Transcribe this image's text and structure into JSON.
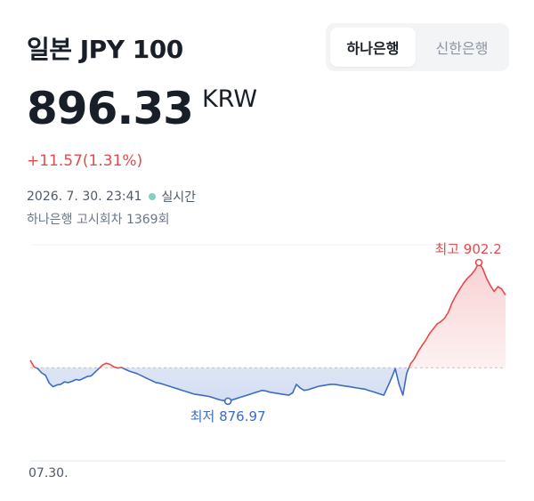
{
  "header": {
    "title": "일본 JPY 100",
    "banks": [
      {
        "label": "하나은행",
        "active": true
      },
      {
        "label": "신한은행",
        "active": false
      }
    ]
  },
  "rate": {
    "price": "896.33",
    "unit": "KRW",
    "change": "+11.57(1.31%)",
    "timestamp": "2026. 7. 30. 23:41",
    "live_label": "실시간",
    "notice": "하나은행 고시회차 1369회"
  },
  "colors": {
    "up": "#e5494d",
    "down": "#3c6bc4",
    "live": "#7fd3c0"
  },
  "chart_data": {
    "type": "line",
    "x_label_start": "07.30.",
    "baseline": 884.76,
    "high_label": "최고 902.2",
    "low_label": "최저 876.97",
    "high": 902.2,
    "low": 876.97,
    "values": [
      886.0,
      884.9,
      884.6,
      883.9,
      883.5,
      882.2,
      881.6,
      881.9,
      882.0,
      882.4,
      882.3,
      882.5,
      882.8,
      882.7,
      883.0,
      883.3,
      883.4,
      884.0,
      884.6,
      885.2,
      885.5,
      885.3,
      884.9,
      884.7,
      884.8,
      884.5,
      884.2,
      884.0,
      883.8,
      883.5,
      883.2,
      882.9,
      882.6,
      882.3,
      882.2,
      882.0,
      881.8,
      881.6,
      881.4,
      881.2,
      881.0,
      880.8,
      880.6,
      880.4,
      880.3,
      880.2,
      880.1,
      880.0,
      879.8,
      879.6,
      879.4,
      879.3,
      879.2,
      879.4,
      879.6,
      879.8,
      880.0,
      880.2,
      880.4,
      880.6,
      880.8,
      881.0,
      880.9,
      880.7,
      880.6,
      880.5,
      880.4,
      880.3,
      880.2,
      880.6,
      882.0,
      881.4,
      881.0,
      881.1,
      881.3,
      881.5,
      881.7,
      881.8,
      881.9,
      882.0,
      882.0,
      881.9,
      881.8,
      881.7,
      881.6,
      881.5,
      881.4,
      881.3,
      881.2,
      881.0,
      880.8,
      880.6,
      880.4,
      880.2,
      881.6,
      883.0,
      884.6,
      882.0,
      880.2,
      883.8,
      885.4,
      886.2,
      887.4,
      888.4,
      889.3,
      890.4,
      891.2,
      892.0,
      892.4,
      893.0,
      894.0,
      895.6,
      896.8,
      897.8,
      898.8,
      899.6,
      900.2,
      901.0,
      902.2,
      901.2,
      899.6,
      898.4,
      897.4,
      898.2,
      897.8,
      896.8
    ]
  }
}
